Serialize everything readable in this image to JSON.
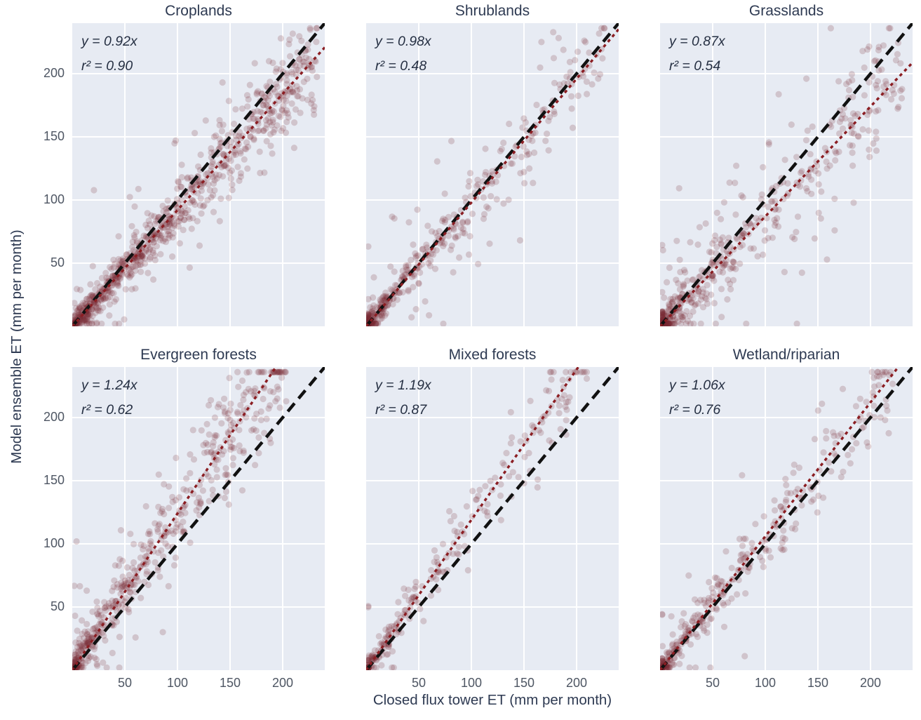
{
  "figure": {
    "xlabel": "Closed flux tower ET (mm per month)",
    "ylabel": "Model ensemble ET (mm per month)"
  },
  "chart_data": {
    "type": "scatter",
    "layout": "2 rows x 3 columns of subplots with shared x and y axes",
    "points_estimated": true,
    "x_axis": {
      "label": "Closed flux tower ET (mm per month)",
      "ticks": [
        50,
        100,
        150,
        200
      ],
      "range": [
        0,
        240
      ]
    },
    "y_axis": {
      "label": "Model ensemble ET (mm per month)",
      "ticks": [
        50,
        100,
        150,
        200
      ],
      "range": [
        0,
        240
      ]
    },
    "reference_line": {
      "name": "1:1 identity line",
      "style": "black long dash",
      "color": "#111111"
    },
    "fit_line": {
      "name": "linear fit through origin",
      "style": "dark red dotted",
      "color": "#8b1e23"
    },
    "colors": {
      "panel_bg": "#e7ebf3",
      "grid": "#ffffff",
      "point_fill": "rgba(122,42,52,0.20)",
      "identity": "#111111",
      "fit": "#8b1e23",
      "title_text": "#2e3a52",
      "tick_text": "#4e5663"
    },
    "panels": [
      {
        "title": "Croplands",
        "slope": 0.92,
        "r2": 0.9,
        "equation_label": "y = 0.92x",
        "r2_label": "r² = 0.90",
        "scatter_model": {
          "n": 840,
          "x_max": 233,
          "x_shape": 1.45,
          "sigma": 13,
          "outlier_frac": 0.1,
          "outlier_sigma": 30,
          "seed": 11
        }
      },
      {
        "title": "Shrublands",
        "slope": 0.98,
        "r2": 0.48,
        "equation_label": "y = 0.98x",
        "r2_label": "r² = 0.48",
        "scatter_model": {
          "n": 430,
          "x_max": 228,
          "x_shape": 2.6,
          "sigma": 13,
          "outlier_frac": 0.18,
          "outlier_sigma": 38,
          "seed": 22
        }
      },
      {
        "title": "Grasslands",
        "slope": 0.87,
        "r2": 0.54,
        "equation_label": "y = 0.87x",
        "r2_label": "r² = 0.54",
        "scatter_model": {
          "n": 500,
          "x_max": 230,
          "x_shape": 2.3,
          "sigma": 16,
          "outlier_frac": 0.22,
          "outlier_sigma": 42,
          "seed": 33
        }
      },
      {
        "title": "Evergreen forests",
        "slope": 1.24,
        "r2": 0.62,
        "equation_label": "y = 1.24x",
        "r2_label": "r² = 0.62",
        "scatter_model": {
          "n": 520,
          "x_max": 205,
          "x_shape": 1.8,
          "sigma": 21,
          "outlier_frac": 0.14,
          "outlier_sigma": 38,
          "seed": 44
        }
      },
      {
        "title": "Mixed forests",
        "slope": 1.19,
        "r2": 0.87,
        "equation_label": "y = 1.19x",
        "r2_label": "r² = 0.87",
        "scatter_model": {
          "n": 255,
          "x_max": 210,
          "x_shape": 2.0,
          "sigma": 12,
          "outlier_frac": 0.12,
          "outlier_sigma": 26,
          "seed": 55
        }
      },
      {
        "title": "Wetland/riparian",
        "slope": 1.06,
        "r2": 0.76,
        "equation_label": "y = 1.06x",
        "r2_label": "r² = 0.76",
        "scatter_model": {
          "n": 345,
          "x_max": 222,
          "x_shape": 1.85,
          "sigma": 16,
          "outlier_frac": 0.15,
          "outlier_sigma": 34,
          "seed": 66
        }
      }
    ]
  }
}
